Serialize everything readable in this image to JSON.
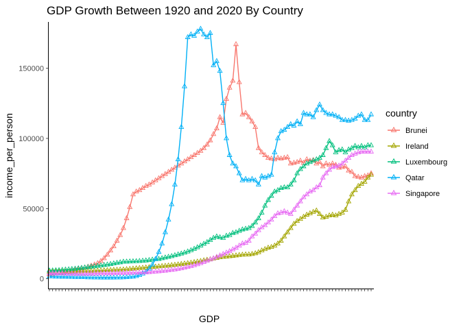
{
  "chart_data": {
    "type": "line",
    "title": "GDP Growth Between 1920 and 2020 By Country",
    "xlabel": "GDP",
    "ylabel": "income_per_person",
    "x": [
      1920,
      1921,
      1922,
      1923,
      1924,
      1925,
      1926,
      1927,
      1928,
      1929,
      1930,
      1931,
      1932,
      1933,
      1934,
      1935,
      1936,
      1937,
      1938,
      1939,
      1940,
      1941,
      1942,
      1943,
      1944,
      1945,
      1946,
      1947,
      1948,
      1949,
      1950,
      1951,
      1952,
      1953,
      1954,
      1955,
      1956,
      1957,
      1958,
      1959,
      1960,
      1961,
      1962,
      1963,
      1964,
      1965,
      1966,
      1967,
      1968,
      1969,
      1970,
      1971,
      1972,
      1973,
      1974,
      1975,
      1976,
      1977,
      1978,
      1979,
      1980,
      1981,
      1982,
      1983,
      1984,
      1985,
      1986,
      1987,
      1988,
      1989,
      1990,
      1991,
      1992,
      1993,
      1994,
      1995,
      1996,
      1997,
      1998,
      1999,
      2000,
      2001,
      2002,
      2003,
      2004,
      2005,
      2006,
      2007,
      2008,
      2009,
      2010,
      2011,
      2012,
      2013,
      2014,
      2015,
      2016,
      2017,
      2018,
      2019,
      2020
    ],
    "ylim": [
      -7000,
      183000
    ],
    "y_ticks": [
      0,
      50000,
      100000,
      150000
    ],
    "y_tick_labels": [
      "0",
      "50000",
      "100000",
      "150000"
    ],
    "grid": false,
    "legend": {
      "title": "country",
      "position": "right"
    },
    "marker": "triangle-open",
    "series": [
      {
        "name": "Brunei",
        "color": "#F8766D",
        "values": [
          3000,
          3300,
          3600,
          3900,
          4200,
          4600,
          5000,
          5500,
          6000,
          6600,
          7200,
          7800,
          8500,
          9200,
          10000,
          11000,
          12500,
          14500,
          17000,
          20000,
          23000,
          27000,
          31000,
          36000,
          43000,
          51000,
          60000,
          62000,
          63000,
          64500,
          66000,
          67000,
          68500,
          70000,
          71500,
          73000,
          74500,
          76000,
          77500,
          79000,
          80500,
          82000,
          83500,
          85000,
          86500,
          88000,
          89500,
          91000,
          93000,
          95500,
          98500,
          103000,
          107000,
          115000,
          111000,
          128000,
          136000,
          141000,
          167000,
          140000,
          117000,
          118000,
          115000,
          112000,
          108000,
          93000,
          90000,
          88000,
          86000,
          85500,
          85000,
          86000,
          85500,
          86000,
          86500,
          82000,
          82500,
          83000,
          84000,
          82500,
          85000,
          84000,
          84500,
          82000,
          83000,
          80000,
          82000,
          81000,
          82000,
          81000,
          79000,
          79500,
          80000,
          77000,
          76000,
          73000,
          72500,
          72000,
          73000,
          73500,
          75000
        ]
      },
      {
        "name": "Ireland",
        "color": "#A3A500",
        "values": [
          4800,
          4800,
          4900,
          5000,
          5000,
          5100,
          5100,
          5200,
          5200,
          5300,
          5300,
          5400,
          5500,
          5500,
          5600,
          5700,
          5800,
          5900,
          6000,
          6100,
          6200,
          6300,
          6400,
          6500,
          6700,
          6900,
          7100,
          7300,
          7500,
          7700,
          7900,
          8100,
          8300,
          8500,
          8700,
          8900,
          9100,
          9300,
          9600,
          9800,
          10100,
          10400,
          10700,
          11000,
          11300,
          11700,
          12100,
          12500,
          13000,
          13400,
          13800,
          14300,
          14700,
          15200,
          15500,
          15700,
          15900,
          16200,
          16500,
          16800,
          17000,
          17200,
          17200,
          17500,
          18000,
          18800,
          20000,
          21000,
          22000,
          22500,
          23500,
          25000,
          27000,
          30000,
          33000,
          36000,
          39000,
          41000,
          42500,
          44000,
          45500,
          46500,
          47500,
          48500,
          46000,
          43500,
          44000,
          45000,
          45500,
          45000,
          46000,
          47000,
          49000,
          55000,
          60000,
          63000,
          66000,
          67500,
          69000,
          72000,
          74000
        ]
      },
      {
        "name": "Luxembourg",
        "color": "#00BF7D",
        "values": [
          5800,
          5800,
          5900,
          6000,
          6200,
          6400,
          6600,
          6800,
          7000,
          7300,
          7600,
          7900,
          8200,
          8500,
          8800,
          9100,
          9400,
          9700,
          10000,
          10400,
          10800,
          11200,
          11600,
          12000,
          12100,
          12200,
          12300,
          12400,
          12500,
          12700,
          12900,
          13200,
          13500,
          13800,
          14000,
          14500,
          15000,
          15500,
          16000,
          16600,
          17200,
          17800,
          18500,
          19300,
          20200,
          21200,
          22300,
          23500,
          24800,
          26000,
          27500,
          29000,
          30000,
          29500,
          29000,
          30500,
          31000,
          32500,
          33000,
          34000,
          35000,
          35500,
          36000,
          37500,
          40000,
          43000,
          47000,
          52000,
          56000,
          59000,
          62000,
          63000,
          64500,
          65000,
          65000,
          67000,
          70000,
          75000,
          78000,
          80000,
          82000,
          83000,
          84000,
          85000,
          86000,
          88000,
          93000,
          98000,
          95000,
          90000,
          91500,
          92000,
          90000,
          92000,
          93000,
          94500,
          93500,
          94500,
          93500,
          95000,
          95000
        ]
      },
      {
        "name": "Qatar",
        "color": "#00B0F6",
        "values": [
          1500,
          1500,
          1400,
          1400,
          1300,
          1300,
          1200,
          1200,
          1100,
          1100,
          1000,
          1000,
          900,
          900,
          800,
          800,
          700,
          700,
          700,
          700,
          700,
          800,
          800,
          900,
          1000,
          1200,
          1400,
          1800,
          2500,
          3600,
          5000,
          7000,
          10000,
          14000,
          19000,
          25000,
          33000,
          42000,
          53000,
          67000,
          85000,
          108000,
          137000,
          172000,
          174000,
          173000,
          176000,
          178000,
          174000,
          172000,
          175000,
          152000,
          155000,
          148000,
          125000,
          100000,
          88000,
          82000,
          80000,
          75000,
          70000,
          71000,
          70000,
          71000,
          70000,
          67000,
          73000,
          72000,
          73000,
          74000,
          90000,
          100000,
          105000,
          106000,
          108000,
          110000,
          109000,
          112000,
          110000,
          118000,
          117000,
          117000,
          115000,
          120000,
          124000,
          120000,
          118000,
          117000,
          117000,
          116000,
          115000,
          113000,
          113000,
          112500,
          113000,
          114000,
          116000,
          117000,
          113000,
          113000,
          117000
        ]
      },
      {
        "name": "Singapore",
        "color": "#E76BF3",
        "values": [
          3800,
          3800,
          3800,
          3700,
          3700,
          3600,
          3600,
          3500,
          3500,
          3400,
          3400,
          3400,
          3500,
          3500,
          3600,
          3600,
          3700,
          3700,
          3800,
          3800,
          3900,
          3900,
          4000,
          4000,
          4100,
          4100,
          4200,
          4200,
          4300,
          4300,
          4400,
          4600,
          4800,
          5000,
          5200,
          5400,
          5600,
          5900,
          6200,
          6500,
          6900,
          7300,
          7800,
          8300,
          8900,
          9500,
          10200,
          11000,
          11800,
          12700,
          13600,
          14500,
          15500,
          16500,
          17500,
          18500,
          19500,
          20800,
          22000,
          23500,
          25000,
          25500,
          27000,
          30000,
          32000,
          34500,
          36500,
          38000,
          40000,
          42000,
          44500,
          46500,
          47000,
          48000,
          47000,
          46000,
          49000,
          52000,
          55000,
          58000,
          60000,
          62000,
          63000,
          65000,
          66500,
          72000,
          75000,
          77500,
          79500,
          80000,
          80500,
          82000,
          84000,
          86000,
          88000,
          89000,
          90000,
          90500,
          90500,
          90500,
          90500
        ]
      }
    ]
  }
}
